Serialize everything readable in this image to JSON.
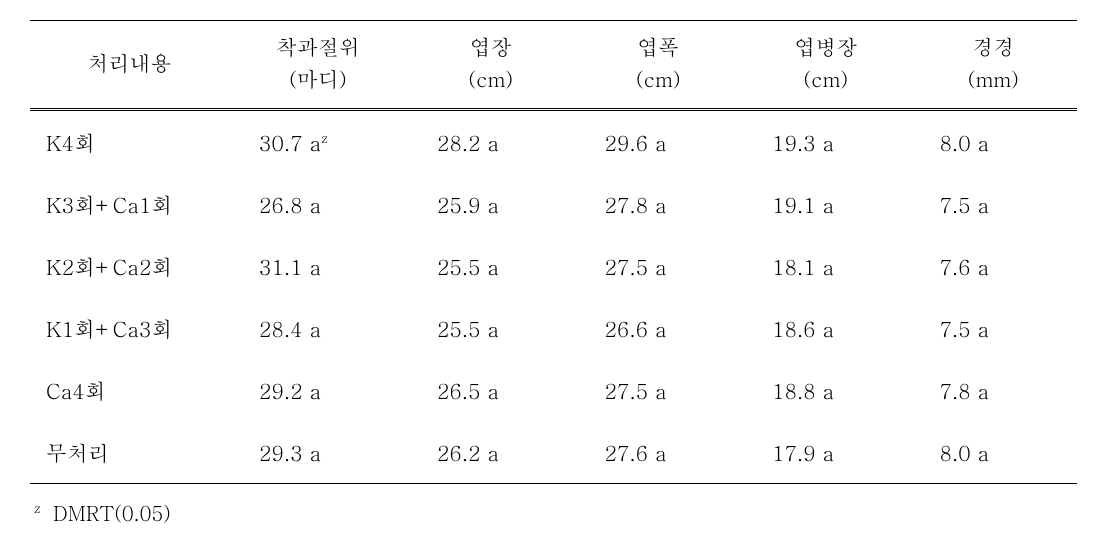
{
  "table": {
    "columns": [
      {
        "label": "처리내용",
        "unit": ""
      },
      {
        "label": "착과절위",
        "unit": "(마디)"
      },
      {
        "label": "엽장",
        "unit": "(cm)"
      },
      {
        "label": "엽폭",
        "unit": "(cm)"
      },
      {
        "label": "엽병장",
        "unit": "(cm)"
      },
      {
        "label": "경경",
        "unit": "(mm)"
      }
    ],
    "rows": [
      {
        "treatment": "K4회",
        "c1_val": "30.7 a",
        "c1_sup": "z",
        "c2": "28.2 a",
        "c3": "29.6 a",
        "c4": "19.3 a",
        "c5": "8.0 a"
      },
      {
        "treatment": "K3회+Ca1회",
        "c1_val": "26.8 a",
        "c1_sup": "",
        "c2": "25.9 a",
        "c3": "27.8 a",
        "c4": "19.1 a",
        "c5": "7.5 a"
      },
      {
        "treatment": "K2회+Ca2회",
        "c1_val": "31.1 a",
        "c1_sup": "",
        "c2": "25.5 a",
        "c3": "27.5 a",
        "c4": "18.1 a",
        "c5": "7.6 a"
      },
      {
        "treatment": "K1회+Ca3회",
        "c1_val": "28.4 a",
        "c1_sup": "",
        "c2": "25.5 a",
        "c3": "26.6 a",
        "c4": "18.6 a",
        "c5": "7.5 a"
      },
      {
        "treatment": "Ca4회",
        "c1_val": "29.2 a",
        "c1_sup": "",
        "c2": "26.5 a",
        "c3": "27.5 a",
        "c4": "18.8 a",
        "c5": "7.8 a"
      },
      {
        "treatment": "무처리",
        "c1_val": "29.3 a",
        "c1_sup": "",
        "c2": "26.2 a",
        "c3": "27.6 a",
        "c4": "17.9 a",
        "c5": "8.0 a"
      }
    ],
    "footnote_sup": "z",
    "footnote_text": "DMRT(0.05)"
  }
}
